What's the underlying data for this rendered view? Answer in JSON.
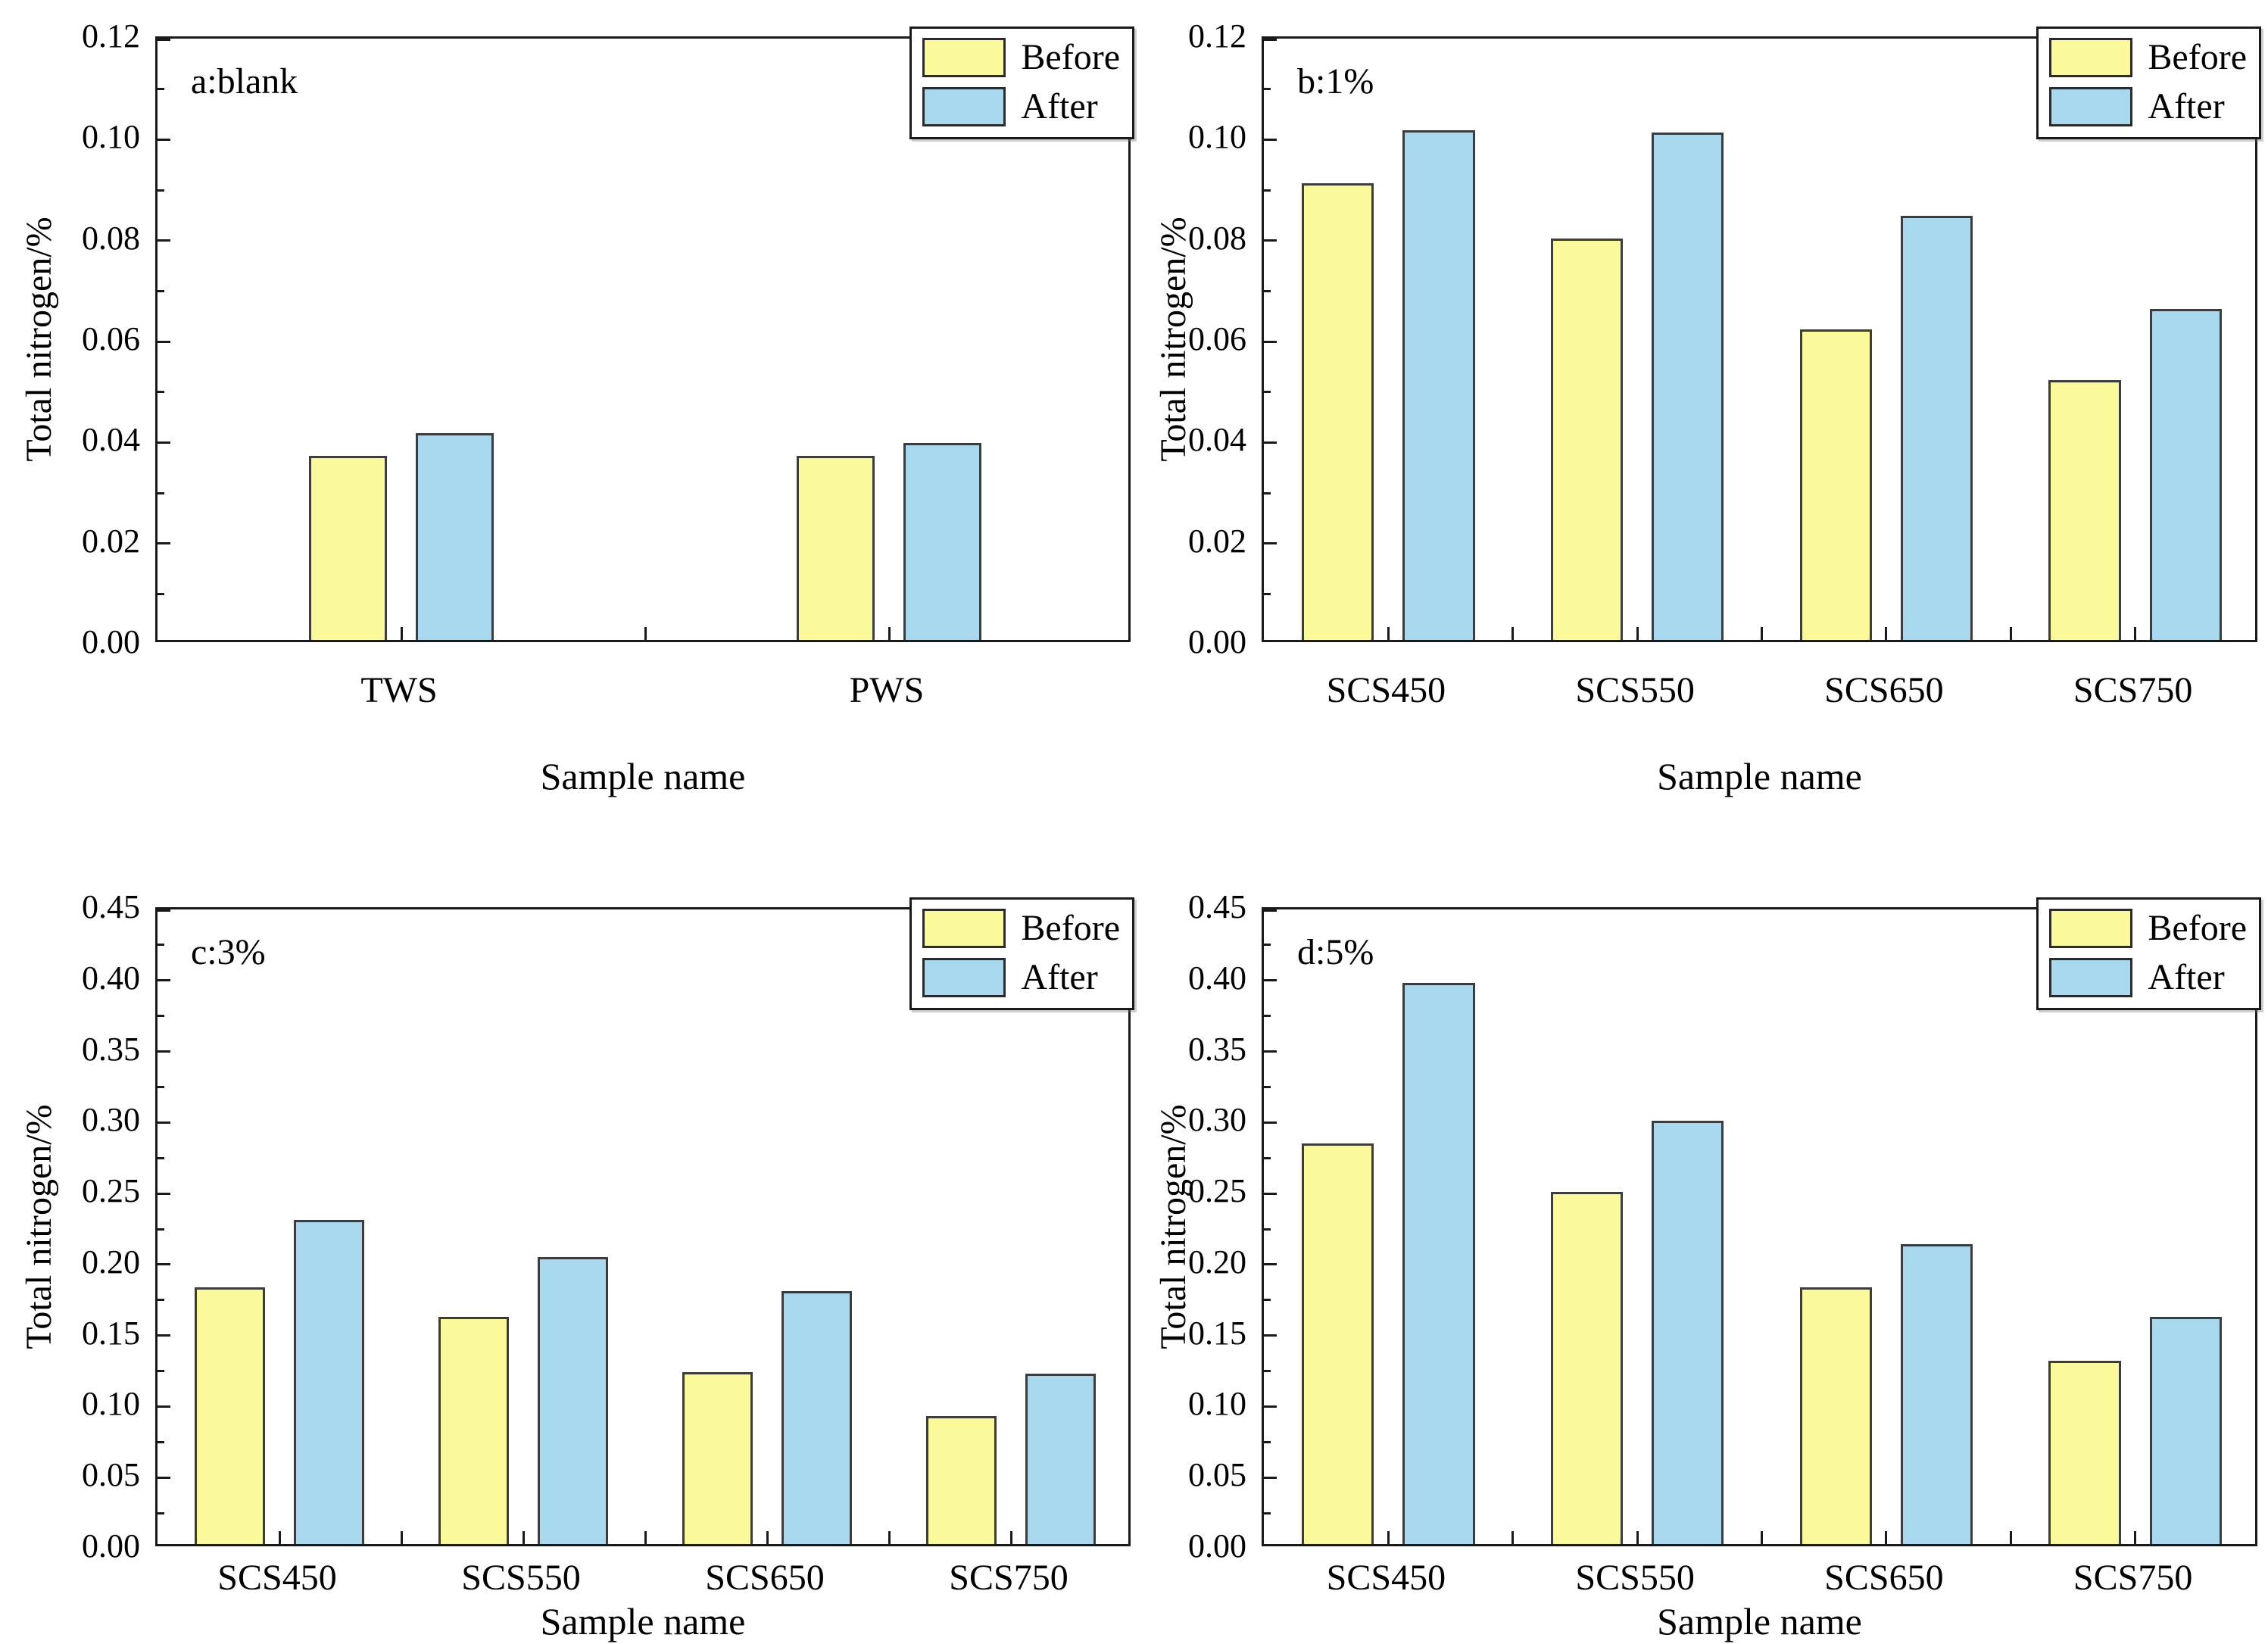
{
  "figure": {
    "description": "Total nitrogen before and after, four-panel bar figure",
    "panels_order": [
      "a",
      "b",
      "c",
      "d"
    ]
  },
  "colors": {
    "before_fill": "#fafa9b",
    "after_fill": "#a8d8ee",
    "bar_edge": "#3c3c3c",
    "axis": "#1a1a1a",
    "text": "#000000",
    "background": "#ffffff"
  },
  "chart_data": [
    {
      "id": "a",
      "type": "bar",
      "panel_label": "a:blank",
      "categories": [
        "TWS",
        "PWS"
      ],
      "series": [
        {
          "name": "Before",
          "values": [
            0.0365,
            0.0365
          ]
        },
        {
          "name": "After",
          "values": [
            0.041,
            0.039
          ]
        }
      ],
      "ylabel": "Total nitrogen/%",
      "xlabel": "Sample name",
      "ylim": [
        0,
        0.12
      ],
      "ytick_major": 0.02,
      "ytick_minor": 0.01,
      "legend": [
        "Before",
        "After"
      ],
      "legend_position": "top-right",
      "grid": false
    },
    {
      "id": "b",
      "type": "bar",
      "panel_label": "b:1%",
      "categories": [
        "SCS450",
        "SCS550",
        "SCS650",
        "SCS750"
      ],
      "series": [
        {
          "name": "Before",
          "values": [
            0.0905,
            0.0795,
            0.0615,
            0.0515
          ]
        },
        {
          "name": "After",
          "values": [
            0.101,
            0.1005,
            0.084,
            0.0655
          ]
        }
      ],
      "ylabel": "Total nitrogen/%",
      "xlabel": "Sample name",
      "ylim": [
        0,
        0.12
      ],
      "ytick_major": 0.02,
      "ytick_minor": 0.01,
      "legend": [
        "Before",
        "After"
      ],
      "legend_position": "top-right",
      "grid": false
    },
    {
      "id": "c",
      "type": "bar",
      "panel_label": "c:3%",
      "categories": [
        "SCS450",
        "SCS550",
        "SCS650",
        "SCS750"
      ],
      "series": [
        {
          "name": "Before",
          "values": [
            0.181,
            0.16,
            0.121,
            0.09
          ]
        },
        {
          "name": "After",
          "values": [
            0.228,
            0.202,
            0.178,
            0.12
          ]
        }
      ],
      "ylabel": "Total nitrogen/%",
      "xlabel": "Sample name",
      "ylim": [
        0,
        0.45
      ],
      "ytick_major": 0.05,
      "ytick_minor": 0.025,
      "legend": [
        "Before",
        "After"
      ],
      "legend_position": "top-right",
      "grid": false
    },
    {
      "id": "d",
      "type": "bar",
      "panel_label": "d:5%",
      "categories": [
        "SCS450",
        "SCS550",
        "SCS650",
        "SCS750"
      ],
      "series": [
        {
          "name": "Before",
          "values": [
            0.282,
            0.248,
            0.181,
            0.129
          ]
        },
        {
          "name": "After",
          "values": [
            0.395,
            0.298,
            0.211,
            0.16
          ]
        }
      ],
      "ylabel": "Total nitrogen/%",
      "xlabel": "Sample name",
      "ylim": [
        0,
        0.45
      ],
      "ytick_major": 0.05,
      "ytick_minor": 0.025,
      "legend": [
        "Before",
        "After"
      ],
      "legend_position": "top-right",
      "grid": false
    }
  ]
}
